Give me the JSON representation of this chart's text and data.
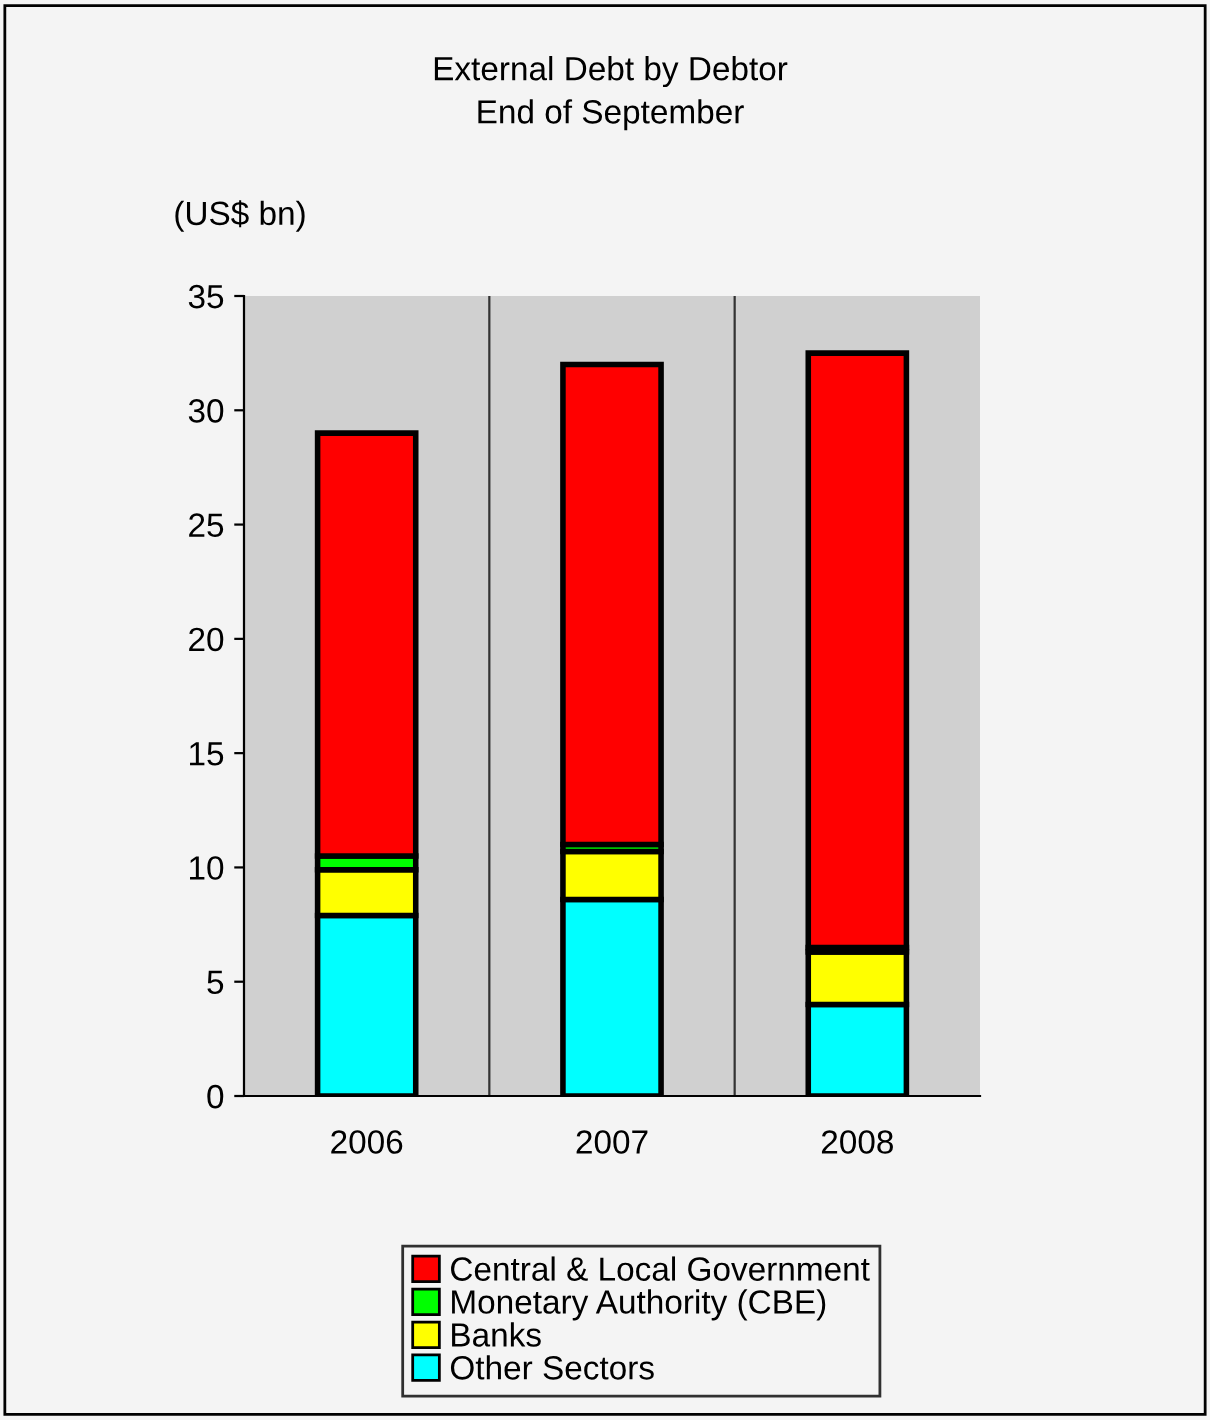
{
  "chart_data": {
    "type": "bar",
    "title": "External Debt by Debtor\nEnd of September",
    "ylabel": "(US$ bn)",
    "categories": [
      "2006",
      "2007",
      "2008"
    ],
    "stacked": true,
    "series": [
      {
        "name": "Other Sectors",
        "color": "#00ffff",
        "values": [
          7.9,
          8.6,
          4.0
        ]
      },
      {
        "name": "Banks",
        "color": "#ffff00",
        "values": [
          2.0,
          2.1,
          2.3
        ]
      },
      {
        "name": "Monetary Authority (CBE)",
        "color": "#00ff00",
        "values": [
          0.6,
          0.3,
          0.2
        ]
      },
      {
        "name": "Central & Local Government",
        "color": "#ff0000",
        "values": [
          18.5,
          21.0,
          26.0
        ]
      }
    ],
    "ylim": [
      0,
      35
    ],
    "yticks": [
      0,
      5,
      10,
      15,
      20,
      25,
      30,
      35
    ],
    "grid": "x",
    "legend": "bottom"
  }
}
